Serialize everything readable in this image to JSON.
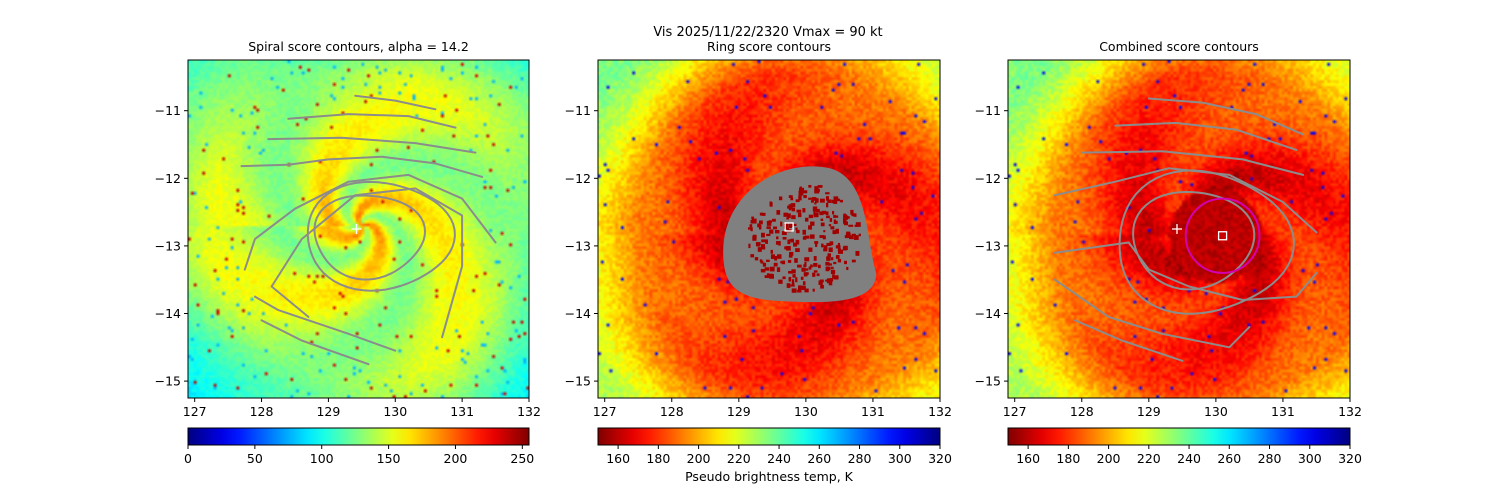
{
  "figure": {
    "suptitle": "Vis  2025/11/22/2320    Vmax = 90 kt"
  },
  "chart_data": [
    {
      "type": "heatmap",
      "title": "Spiral score contours, alpha = 14.2",
      "xlim": [
        126.9,
        132.0
      ],
      "ylim": [
        -15.25,
        -10.25
      ],
      "xticks": [
        127,
        128,
        129,
        130,
        131,
        132
      ],
      "yticks": [
        -11,
        -12,
        -13,
        -14,
        -15
      ],
      "colormap": "jet",
      "background_field": "visible",
      "center": [
        129.5,
        -12.7
      ],
      "contour_color": "#8c8c8c",
      "colorbar": {
        "range": [
          0,
          255
        ],
        "ticks": [
          0,
          50,
          100,
          150,
          200,
          250
        ],
        "label": ""
      },
      "markers": [
        {
          "type": "plus",
          "lon": 129.42,
          "lat": -12.75,
          "color": "#ffffff"
        }
      ]
    },
    {
      "type": "heatmap",
      "title": "Ring score contours",
      "xlim": [
        126.9,
        132.0
      ],
      "ylim": [
        -15.25,
        -10.25
      ],
      "xticks": [
        127,
        128,
        129,
        130,
        131,
        132
      ],
      "yticks": [
        -11,
        -12,
        -13,
        -14,
        -15
      ],
      "colormap": "jet_r",
      "background_field": "brightness_temperature",
      "center": [
        129.9,
        -12.85
      ],
      "masked_region": {
        "center": [
          129.85,
          -12.85
        ],
        "color": "#808080"
      },
      "colorbar": {
        "range": [
          150,
          320
        ],
        "ticks": [
          160,
          180,
          200,
          220,
          240,
          260,
          280,
          300,
          320
        ],
        "label": "Pseudo brightness temp, K"
      },
      "markers": [
        {
          "type": "square",
          "lon": 129.75,
          "lat": -12.72,
          "color": "#ffffff"
        }
      ]
    },
    {
      "type": "heatmap",
      "title": "Combined score contours",
      "xlim": [
        126.9,
        132.0
      ],
      "ylim": [
        -15.25,
        -10.25
      ],
      "xticks": [
        127,
        128,
        129,
        130,
        131,
        132
      ],
      "yticks": [
        -11,
        -12,
        -13,
        -14,
        -15
      ],
      "colormap": "jet_r",
      "background_field": "brightness_temperature",
      "center": [
        130.0,
        -12.85
      ],
      "contour_color": "#8c8c8c",
      "colorbar": {
        "range": [
          150,
          320
        ],
        "ticks": [
          160,
          180,
          200,
          220,
          240,
          260,
          280,
          300,
          320
        ],
        "label": ""
      },
      "markers": [
        {
          "type": "plus",
          "lon": 129.42,
          "lat": -12.75,
          "color": "#ffffff"
        },
        {
          "type": "square",
          "lon": 130.1,
          "lat": -12.85,
          "color": "#ffffff"
        },
        {
          "type": "circle",
          "lon": 130.1,
          "lat": -12.85,
          "radius_deg": 0.55,
          "color": "#d400b0"
        }
      ]
    }
  ]
}
